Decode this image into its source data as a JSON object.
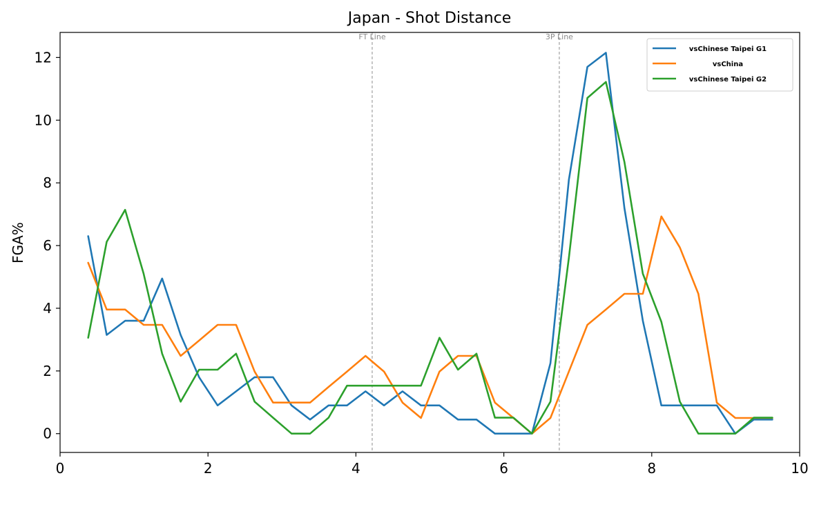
{
  "chart_data": {
    "type": "line",
    "title": "Japan - Shot Distance",
    "xlabel": "",
    "ylabel": "FGA%",
    "xlim": [
      0,
      10
    ],
    "ylim": [
      -0.6,
      12.8
    ],
    "xticks": [
      0,
      2,
      4,
      6,
      8,
      10
    ],
    "yticks": [
      0,
      2,
      4,
      6,
      8,
      10,
      12
    ],
    "grid": false,
    "legend_position": "top-right",
    "reference_lines": [
      {
        "x": 4.22,
        "label": "FT Line"
      },
      {
        "x": 6.75,
        "label": "3P Line"
      }
    ],
    "x": [
      0.38,
      0.63,
      0.88,
      1.13,
      1.38,
      1.63,
      1.88,
      2.13,
      2.38,
      2.63,
      2.88,
      3.13,
      3.38,
      3.63,
      3.88,
      4.13,
      4.38,
      4.63,
      4.88,
      5.13,
      5.38,
      5.63,
      5.88,
      6.13,
      6.38,
      6.63,
      6.88,
      7.13,
      7.38,
      7.63,
      7.88,
      8.13,
      8.38,
      8.63,
      8.88,
      9.13,
      9.38,
      9.63
    ],
    "series": [
      {
        "name": "vsChinese Taipei G1",
        "color": "#1f77b4",
        "values": [
          6.3,
          3.15,
          3.6,
          3.6,
          4.95,
          3.15,
          1.8,
          0.9,
          1.35,
          1.8,
          1.8,
          0.9,
          0.45,
          0.9,
          0.9,
          1.35,
          0.9,
          1.35,
          0.9,
          0.9,
          0.45,
          0.45,
          0.0,
          0.0,
          0.0,
          2.25,
          8.1,
          11.7,
          12.15,
          7.2,
          3.6,
          0.9,
          0.9,
          0.9,
          0.9,
          0.0,
          0.45,
          0.45
        ]
      },
      {
        "name": "vsChina",
        "color": "#ff7f0e",
        "values": [
          5.45,
          3.96,
          3.96,
          3.47,
          3.47,
          2.48,
          2.97,
          3.47,
          3.47,
          1.98,
          0.99,
          0.99,
          0.99,
          1.49,
          1.98,
          2.48,
          1.98,
          0.99,
          0.5,
          1.98,
          2.48,
          2.48,
          0.99,
          0.5,
          0.0,
          0.5,
          1.98,
          3.47,
          3.96,
          4.46,
          4.46,
          6.93,
          5.94,
          4.46,
          0.99,
          0.5,
          0.5,
          0.5
        ]
      },
      {
        "name": "vsChinese Taipei G2",
        "color": "#2ca02c",
        "values": [
          3.06,
          6.12,
          7.14,
          5.1,
          2.55,
          1.02,
          2.04,
          2.04,
          2.55,
          1.02,
          0.51,
          0.0,
          0.0,
          0.51,
          1.53,
          1.53,
          1.53,
          1.53,
          1.53,
          3.06,
          2.04,
          2.55,
          0.51,
          0.51,
          0.0,
          1.02,
          5.61,
          10.71,
          11.22,
          8.67,
          5.1,
          3.57,
          1.02,
          0.0,
          0.0,
          0.0,
          0.51,
          0.51
        ]
      }
    ]
  }
}
